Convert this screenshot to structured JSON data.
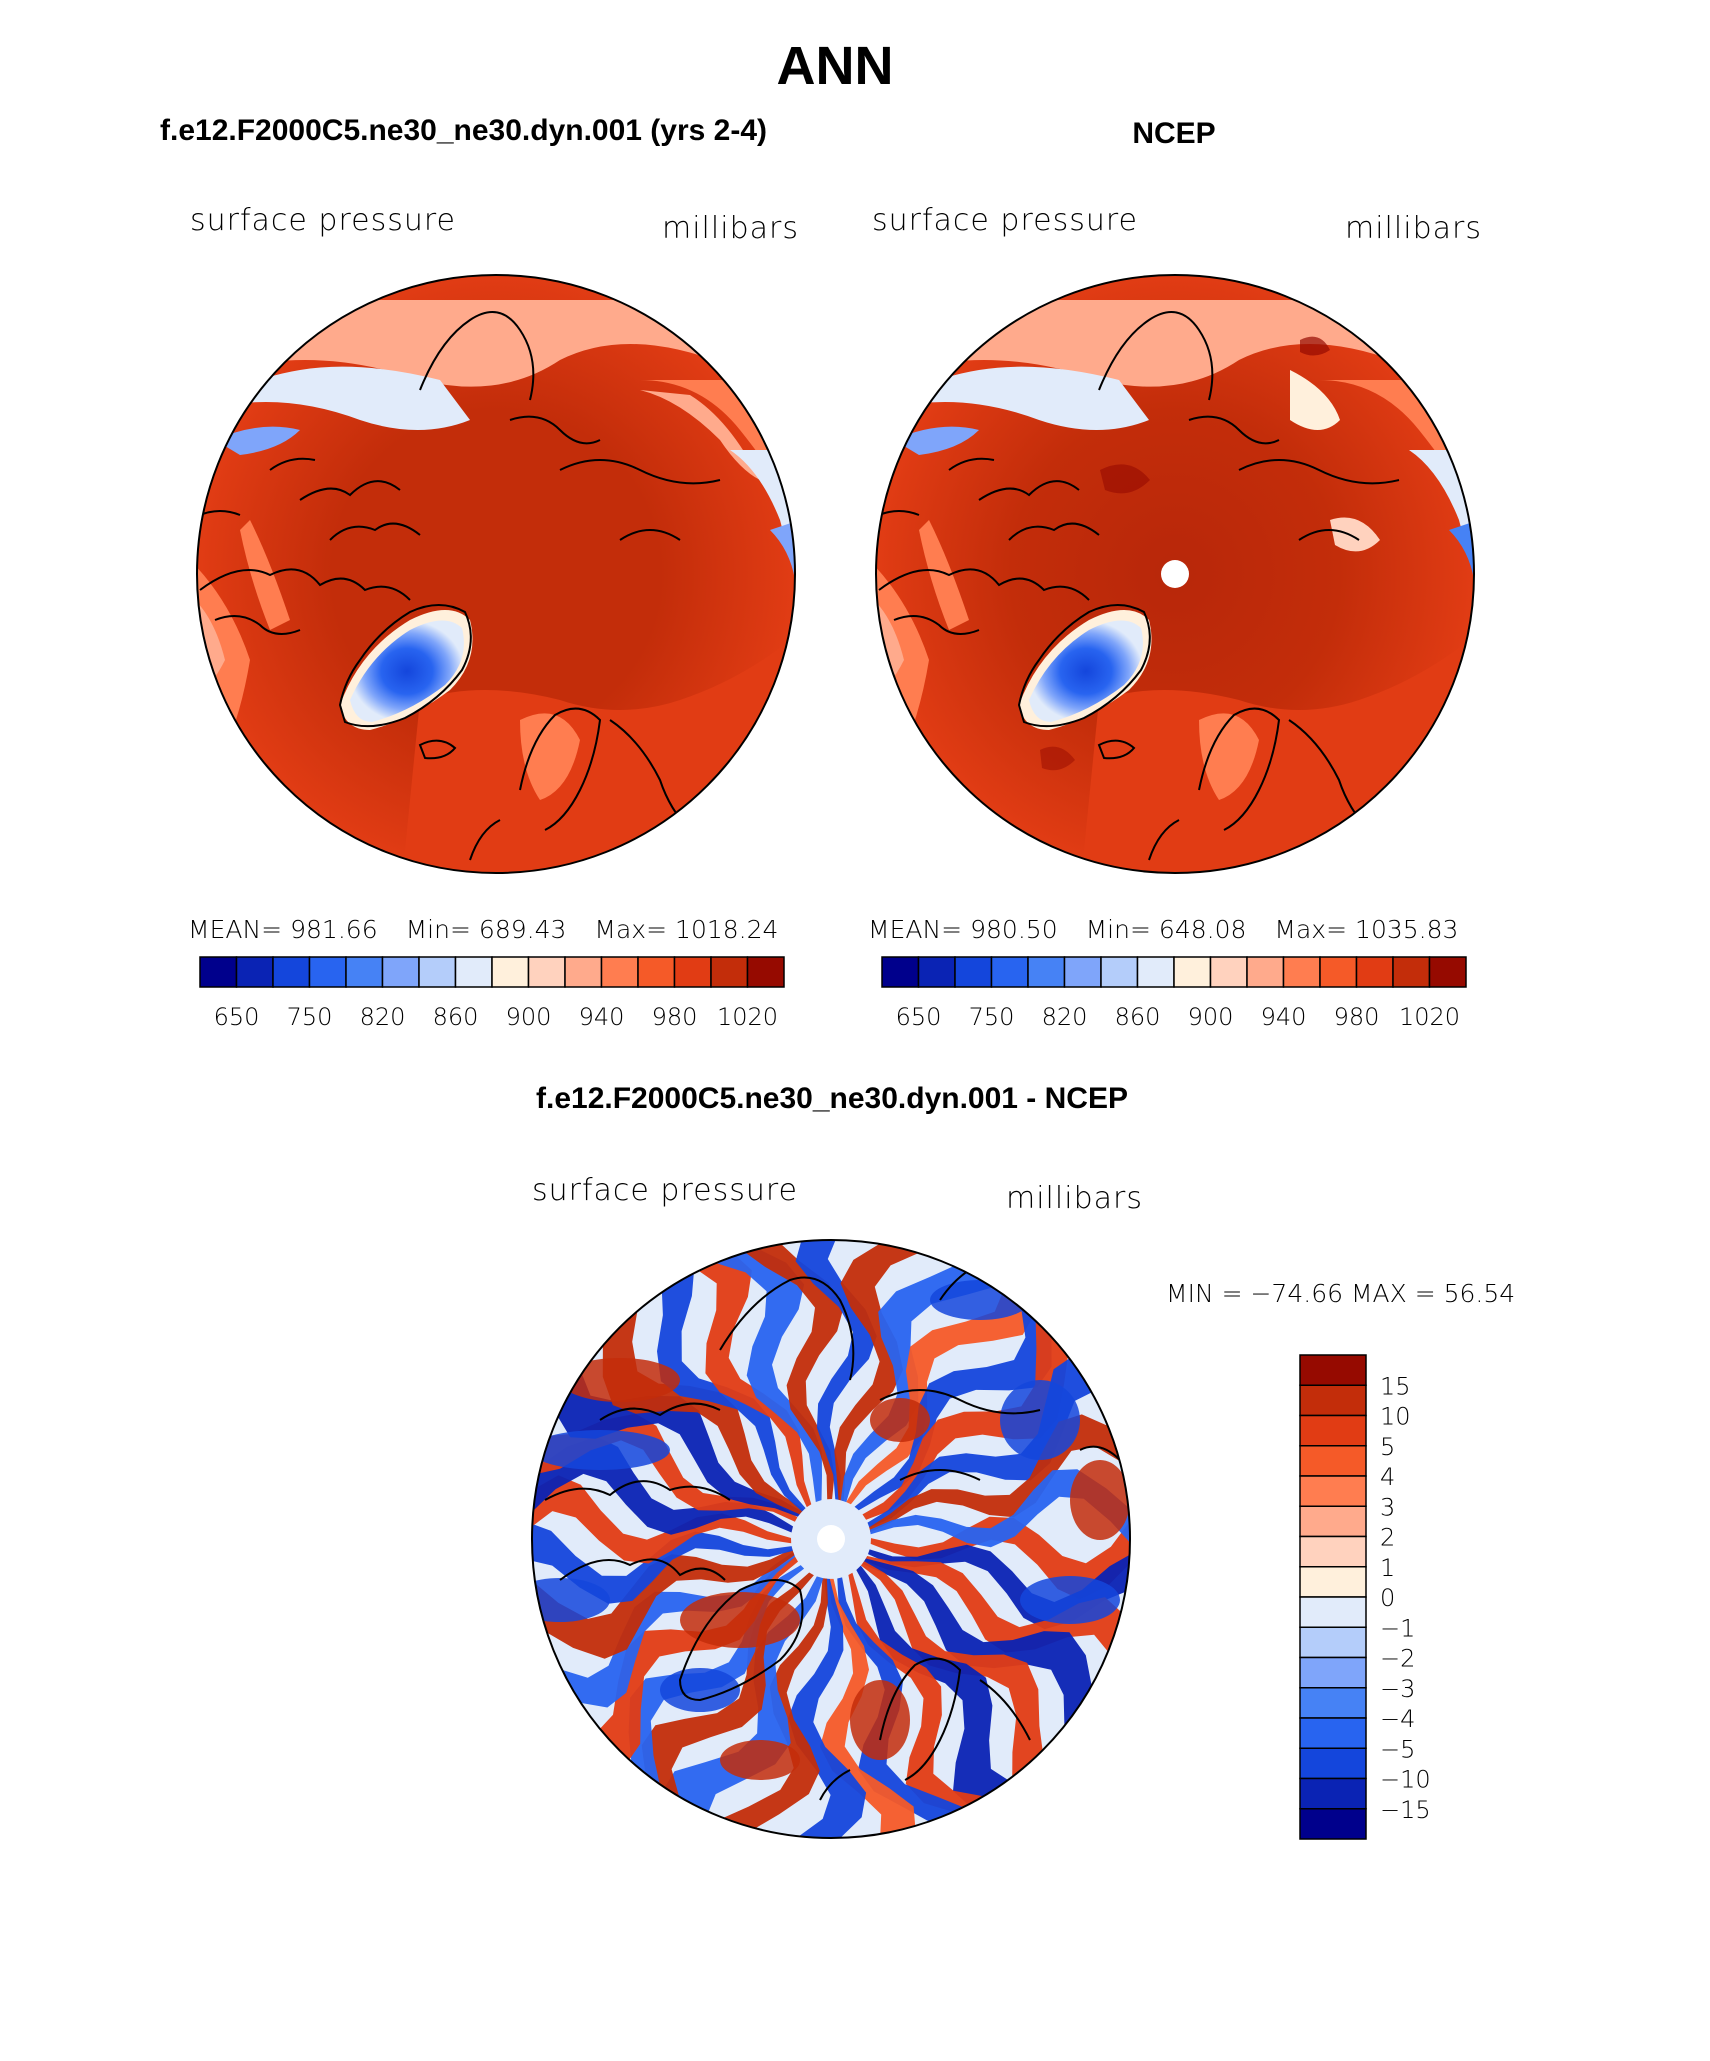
{
  "title": "ANN",
  "colors": {
    "scale": [
      "#00008c",
      "#0a23b4",
      "#1446dc",
      "#2864f0",
      "#4682f5",
      "#7fa5fa",
      "#b4cdfa",
      "#e1ebfa",
      "#fff0dc",
      "#ffd2be",
      "#ffaa8c",
      "#ff7d50",
      "#f55a28",
      "#e13c14",
      "#c32d0a",
      "#960a00"
    ],
    "diff": [
      "#00008c",
      "#0a23b4",
      "#1446dc",
      "#2864f0",
      "#4682f5",
      "#7fa5fa",
      "#b4cdfa",
      "#e1ebfa",
      "#fff0dc",
      "#ffd2be",
      "#ffaa8c",
      "#ff7d50",
      "#f55a28",
      "#e13c14",
      "#c32d0a",
      "#960a00"
    ]
  },
  "panels": [
    {
      "id": "model",
      "title": "f.e12.F2000C5.ne30_ne30.dyn.001 (yrs 2-4)",
      "variable": "surface pressure",
      "units": "millibars",
      "stats": {
        "mean_label": "MEAN=",
        "mean": "981.66",
        "min_label": "Min=",
        "min": "689.43",
        "max_label": "Max=",
        "max": "1018.24"
      },
      "colorbar_labels": [
        "650",
        "750",
        "820",
        "860",
        "900",
        "940",
        "980",
        "1020"
      ],
      "pole_marker": false
    },
    {
      "id": "obs",
      "title": "NCEP",
      "variable": "surface pressure",
      "units": "millibars",
      "stats": {
        "mean_label": "MEAN=",
        "mean": "980.50",
        "min_label": "Min=",
        "min": "648.08",
        "max_label": "Max=",
        "max": "1035.83"
      },
      "colorbar_labels": [
        "650",
        "750",
        "820",
        "860",
        "900",
        "940",
        "980",
        "1020"
      ],
      "pole_marker": true
    }
  ],
  "diff_panel": {
    "title": "f.e12.F2000C5.ne30_ne30.dyn.001 - NCEP",
    "variable": "surface pressure",
    "units": "millibars",
    "minmax": "MIN = −74.66 MAX =   56.54",
    "colorbar_labels": [
      "15",
      "10",
      "5",
      "4",
      "3",
      "2",
      "1",
      "0",
      "−1",
      "−2",
      "−3",
      "−4",
      "−5",
      "−10",
      "−15"
    ],
    "pole_marker": true
  }
}
